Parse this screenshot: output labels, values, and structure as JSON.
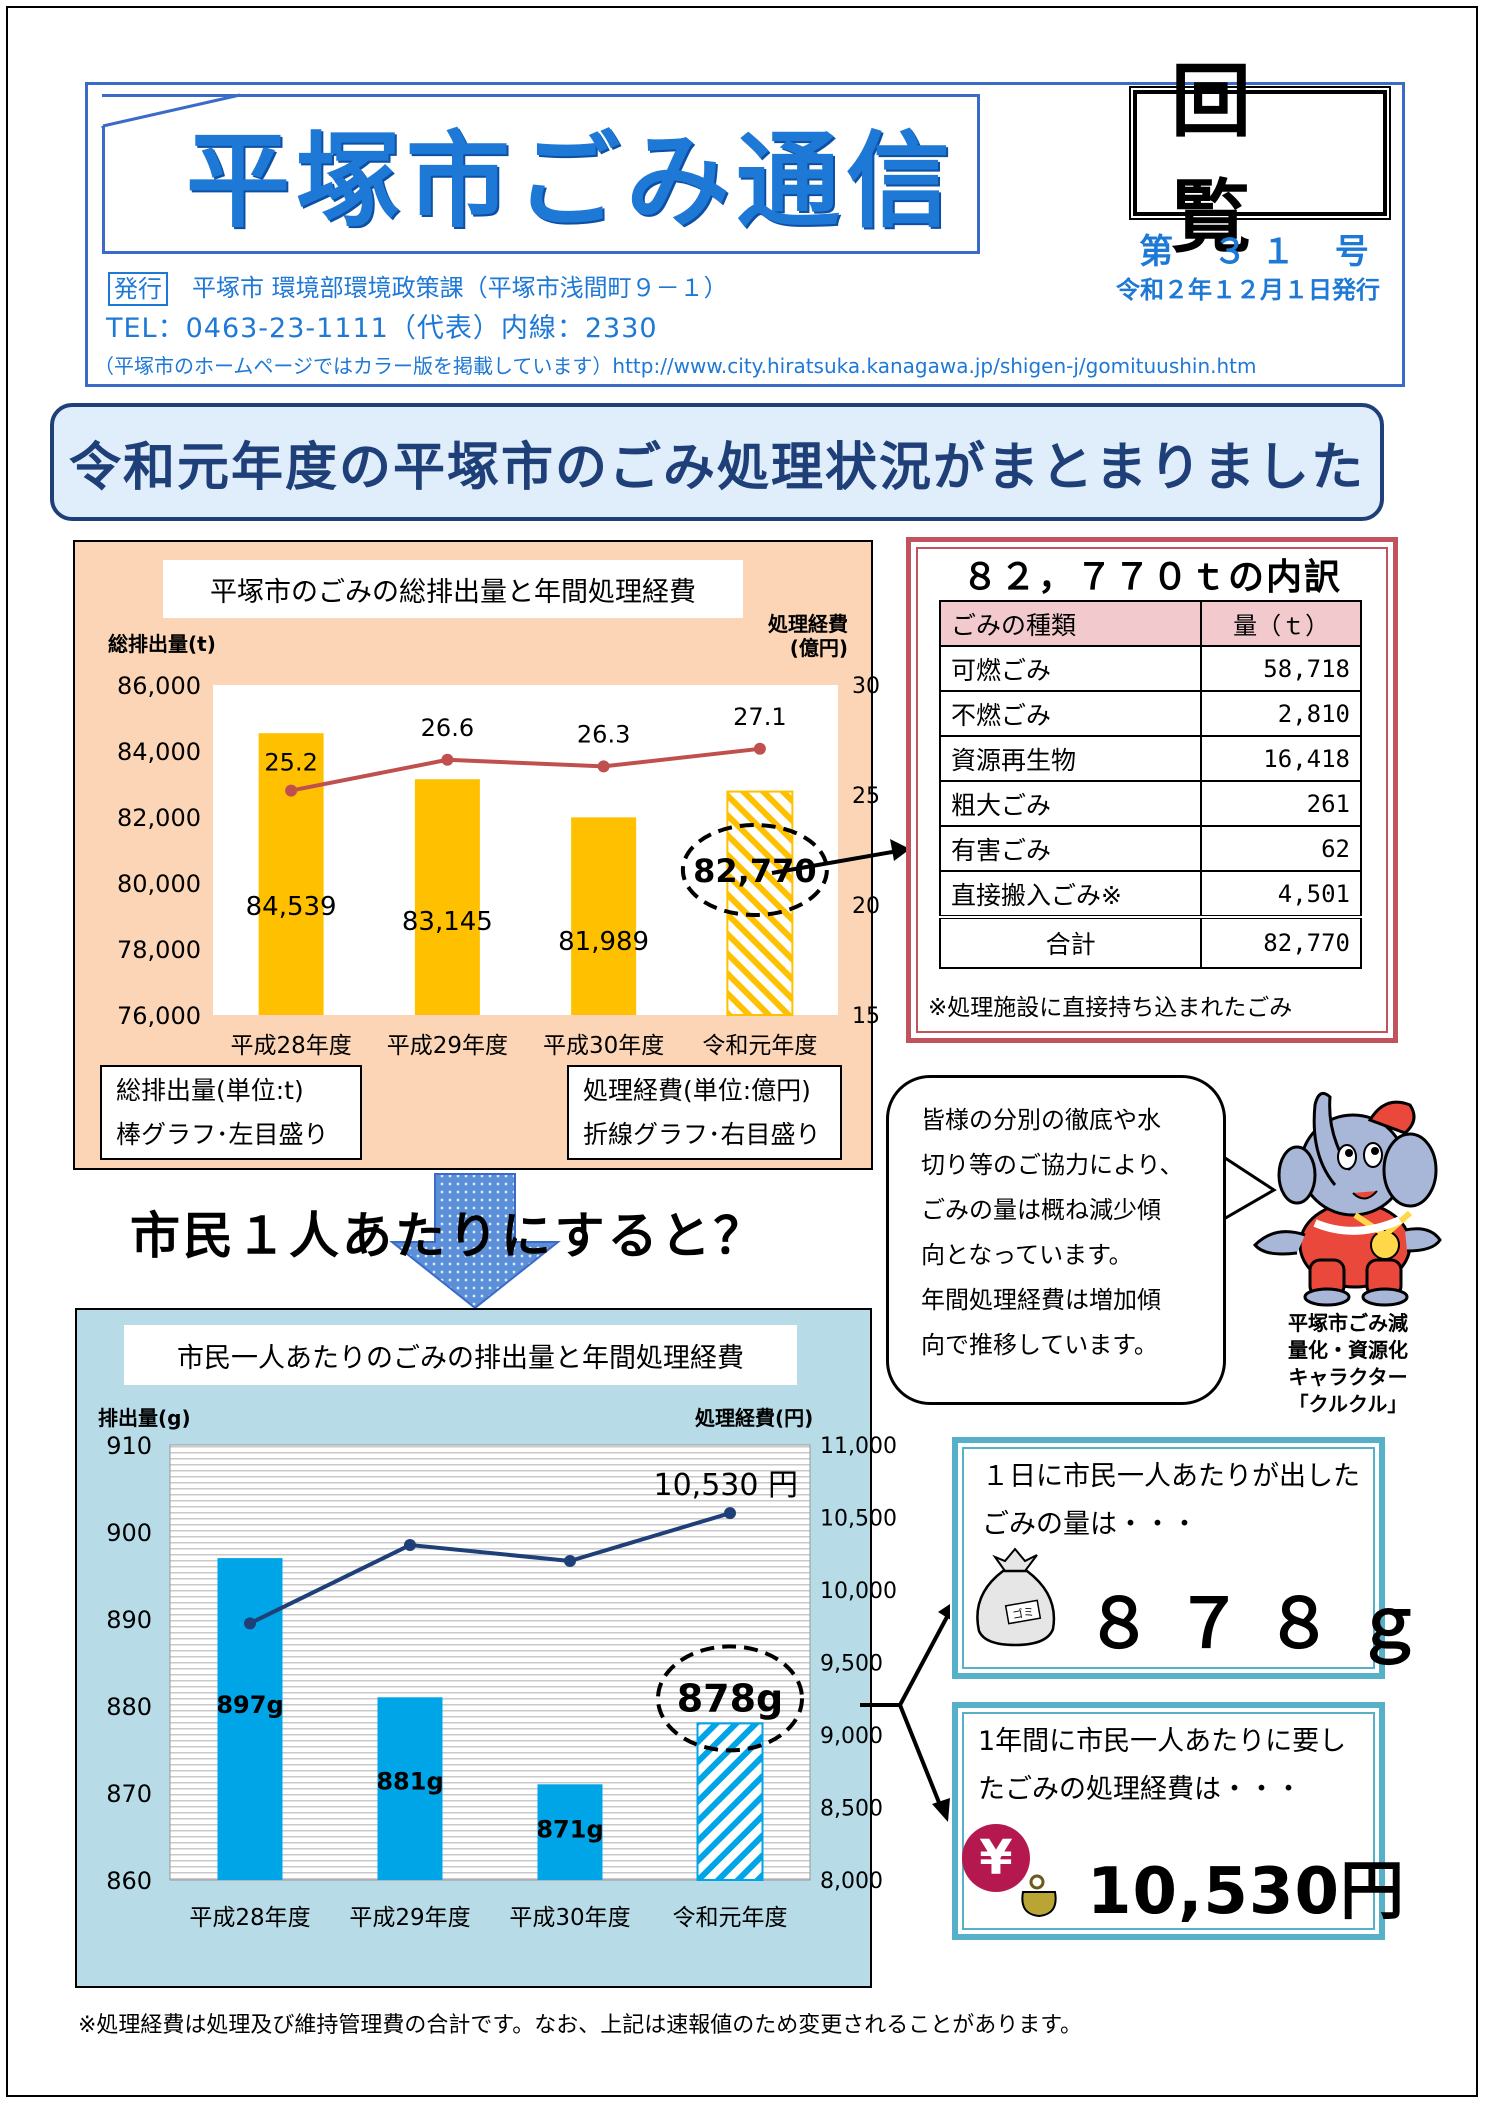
{
  "header": {
    "title": "平塚市ごみ通信",
    "kairan": "回覧",
    "issue_number": "第 ３１ 号",
    "issue_date": "令和２年１２月１日発行",
    "publisher_label": "発行",
    "publisher": "平塚市 環境部環境政策課（平塚市浅間町９－１）",
    "tel": "TEL：0463-23-1111（代表）内線：2330",
    "homepage_note": "（平塚市のホームページではカラー版を掲載しています）http://www.city.hiratsuka.kanagawa.jp/shigen-j/gomituushin.htm"
  },
  "main_heading": "令和元年度の平塚市のごみ処理状況がまとまりました",
  "chart1": {
    "title": "平塚市のごみの総排出量と年間処理経費",
    "y_left_label": "総排出量(t)",
    "y_right_label_1": "処理経費",
    "y_right_label_2": "(億円)",
    "left_ticks": [
      "86,000",
      "84,000",
      "82,000",
      "80,000",
      "78,000",
      "76,000"
    ],
    "right_ticks": [
      "30",
      "25",
      "20",
      "15"
    ],
    "categories": [
      "平成28年度",
      "平成29年度",
      "平成30年度",
      "令和元年度"
    ],
    "bar_labels": [
      "84,539",
      "83,145",
      "81,989",
      "82,770"
    ],
    "line_labels": [
      "25.2",
      "26.6",
      "26.3",
      "27.1"
    ],
    "legend_left_1": "総排出量(単位:t)",
    "legend_left_2": "棒グラフ･左目盛り",
    "legend_right_1": "処理経費(単位:億円)",
    "legend_right_2": "折線グラフ･右目盛り"
  },
  "chart2": {
    "title": "市民一人あたりのごみの排出量と年間処理経費",
    "y_left_label": "排出量(g)",
    "y_right_label": "処理経費(円)",
    "left_ticks": [
      "910",
      "900",
      "890",
      "880",
      "870",
      "860"
    ],
    "right_ticks": [
      "11,000",
      "10,500",
      "10,000",
      "9,500",
      "9,000",
      "8,500",
      "8,000"
    ],
    "categories": [
      "平成28年度",
      "平成29年度",
      "平成30年度",
      "令和元年度"
    ],
    "bar_labels": [
      "897g",
      "881g",
      "871g",
      "878g"
    ],
    "line_annotation": "10,530 円"
  },
  "chart_data": [
    {
      "type": "bar",
      "title": "平塚市のごみの総排出量と年間処理経費",
      "categories": [
        "平成28年度",
        "平成29年度",
        "平成30年度",
        "令和元年度"
      ],
      "series": [
        {
          "name": "総排出量(単位:t)",
          "type": "bar",
          "axis": "left",
          "values": [
            84539,
            83145,
            81989,
            82770
          ]
        },
        {
          "name": "処理経費(単位:億円)",
          "type": "line",
          "axis": "right",
          "values": [
            25.2,
            26.6,
            26.3,
            27.1
          ]
        }
      ],
      "ylim": [
        76000,
        86000
      ],
      "y2lim": [
        15,
        30
      ]
    },
    {
      "type": "bar",
      "title": "市民一人あたりのごみの排出量と年間処理経費",
      "categories": [
        "平成28年度",
        "平成29年度",
        "平成30年度",
        "令和元年度"
      ],
      "series": [
        {
          "type": "bar",
          "axis": "left",
          "values": [
            897,
            881,
            871,
            878
          ]
        },
        {
          "type": "line",
          "axis": "right",
          "values": [
            9770,
            10310,
            10200,
            10530
          ]
        }
      ],
      "ylim": [
        860,
        910
      ],
      "y2lim": [
        8000,
        11000
      ]
    }
  ],
  "breakdown": {
    "title": "８２，７７０ｔの内訳",
    "header_type": "ごみの種類",
    "header_amount": "量（ｔ）",
    "rows": [
      {
        "type": "可燃ごみ",
        "amount": "58,718"
      },
      {
        "type": "不燃ごみ",
        "amount": "2,810"
      },
      {
        "type": "資源再生物",
        "amount": "16,418"
      },
      {
        "type": "粗大ごみ",
        "amount": "261"
      },
      {
        "type": "有害ごみ",
        "amount": "62"
      },
      {
        "type": "直接搬入ごみ※",
        "amount": "4,501"
      }
    ],
    "total_label": "合計",
    "total_value": "82,770",
    "note": "※処理施設に直接持ち込まれたごみ"
  },
  "bubble": {
    "line1": "皆様の分別の徹底や水",
    "line2": "切り等のご協力により、",
    "line3": "ごみの量は概ね減少傾",
    "line4": "向となっています。",
    "line5": "年間処理経費は増加傾",
    "line6": "向で推移しています。"
  },
  "character": {
    "caption_1": "平塚市ごみ減",
    "caption_2": "量化・資源化",
    "caption_3": "キャラクター",
    "caption_4": "「クルクル」"
  },
  "per_citizen_heading": "市民１人あたりにすると？",
  "info_daily": {
    "line1": "１日に市民一人あたりが出した",
    "line2": "ごみの量は・・・",
    "value": "８７８ｇ",
    "bag_label": "ゴミ"
  },
  "info_cost": {
    "line1": "1年間に市民一人あたりに要し",
    "line2": "たごみの処理経費は・・・",
    "value": "10,530円",
    "yen_symbol": "¥"
  },
  "footnote": "※処理経費は処理及び維持管理費の合計です。なお、上記は速報値のため変更されることがあります。",
  "colors": {
    "title_blue": "#1e78d6",
    "bar_orange": "#ffc000",
    "line_red": "#c0504d",
    "bar_blue": "#00a5e8",
    "line_navy": "#1f3f78",
    "chart1_bg": "#fbd5b5",
    "chart2_bg": "#b7dce8"
  }
}
